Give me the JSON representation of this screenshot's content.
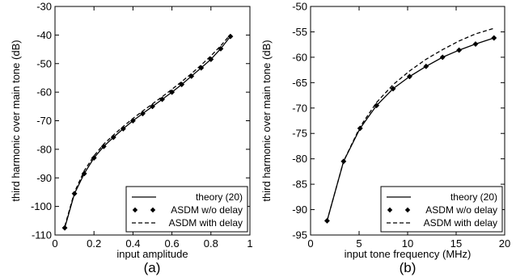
{
  "chart_data": [
    {
      "panel_label": "(a)",
      "type": "line",
      "xlabel": "input amplitude",
      "ylabel": "third harmonic over main tone (dB)",
      "xlim": [
        0,
        1
      ],
      "ylim": [
        -110,
        -30
      ],
      "xticks": [
        0,
        0.2,
        0.4,
        0.6,
        0.8,
        1
      ],
      "xtick_labels": [
        "0",
        "0.2",
        "0.4",
        "0.6",
        "0.8",
        "1"
      ],
      "yticks": [
        -110,
        -100,
        -90,
        -80,
        -70,
        -60,
        -50,
        -40,
        -30
      ],
      "ytick_labels": [
        "-110",
        "-100",
        "-90",
        "-80",
        "-70",
        "-60",
        "-50",
        "-40",
        "-30"
      ],
      "grid": false,
      "legend_position": "bottom-right",
      "series": [
        {
          "name": "theory (20)",
          "style": "solid",
          "x": [
            0.05,
            0.1,
            0.15,
            0.2,
            0.25,
            0.3,
            0.35,
            0.4,
            0.45,
            0.5,
            0.55,
            0.6,
            0.65,
            0.7,
            0.75,
            0.8,
            0.85,
            0.9
          ],
          "y": [
            -107.5,
            -95.5,
            -88.5,
            -83,
            -79,
            -75.8,
            -72.8,
            -70,
            -67.5,
            -65,
            -62.5,
            -60,
            -57.3,
            -54.4,
            -51.5,
            -48.5,
            -44.8,
            -40.5
          ]
        },
        {
          "name": "ASDM w/o delay",
          "style": "markers",
          "x": [
            0.05,
            0.1,
            0.15,
            0.2,
            0.25,
            0.3,
            0.35,
            0.4,
            0.45,
            0.5,
            0.55,
            0.6,
            0.65,
            0.7,
            0.75,
            0.8,
            0.85,
            0.9
          ],
          "y": [
            -107.5,
            -95.5,
            -88.5,
            -83,
            -79,
            -75.8,
            -72.8,
            -70,
            -67.5,
            -65,
            -62.5,
            -60,
            -57.3,
            -54.4,
            -51.5,
            -48.5,
            -44.8,
            -40.5
          ]
        },
        {
          "name": "ASDM with delay",
          "style": "dashed",
          "x": [
            0.05,
            0.1,
            0.15,
            0.2,
            0.25,
            0.3,
            0.35,
            0.4,
            0.45,
            0.5,
            0.55,
            0.6,
            0.65,
            0.7,
            0.75,
            0.8,
            0.85,
            0.9
          ],
          "y": [
            -107,
            -95,
            -87.5,
            -82.3,
            -78.2,
            -75,
            -72,
            -69.2,
            -66.6,
            -64.1,
            -61.6,
            -59,
            -56.3,
            -53.5,
            -50.5,
            -47.3,
            -43.8,
            -39.8
          ]
        }
      ]
    },
    {
      "panel_label": "(b)",
      "type": "line",
      "xlabel": "input tone frequency (MHz)",
      "ylabel": "third harmonic over main tone (dB)",
      "xlim": [
        0,
        20
      ],
      "ylim": [
        -95,
        -50
      ],
      "xticks": [
        0,
        5,
        10,
        15,
        20
      ],
      "xtick_labels": [
        "0",
        "5",
        "10",
        "15",
        "20"
      ],
      "yticks": [
        -95,
        -90,
        -85,
        -80,
        -75,
        -70,
        -65,
        -60,
        -55,
        -50
      ],
      "ytick_labels": [
        "-95",
        "-90",
        "-85",
        "-80",
        "-75",
        "-70",
        "-65",
        "-60",
        "-55",
        "-50"
      ],
      "grid": false,
      "legend_position": "bottom-right",
      "series": [
        {
          "name": "theory (20)",
          "style": "solid",
          "x": [
            1.7,
            3.4,
            5.1,
            6.8,
            8.5,
            10.2,
            11.9,
            13.6,
            15.3,
            17.0,
            18.9
          ],
          "y": [
            -92.2,
            -80.5,
            -74,
            -69.5,
            -66.2,
            -63.8,
            -61.8,
            -60,
            -58.6,
            -57.4,
            -56.2
          ]
        },
        {
          "name": "ASDM w/o delay",
          "style": "markers",
          "x": [
            1.7,
            3.4,
            5.1,
            6.8,
            8.5,
            10.2,
            11.9,
            13.6,
            15.3,
            17.0,
            18.9
          ],
          "y": [
            -92.2,
            -80.5,
            -74,
            -69.5,
            -66.2,
            -63.8,
            -61.8,
            -60,
            -58.6,
            -57.4,
            -56.2
          ]
        },
        {
          "name": "ASDM with delay",
          "style": "dashed",
          "x": [
            1.7,
            3.4,
            5.1,
            6.8,
            8.5,
            10.2,
            11.9,
            13.6,
            15.3,
            17.0,
            18.9
          ],
          "y": [
            -92.2,
            -80.5,
            -73.7,
            -68.9,
            -65.4,
            -62.7,
            -60.4,
            -58.5,
            -56.8,
            -55.4,
            -54.3
          ]
        }
      ]
    }
  ]
}
